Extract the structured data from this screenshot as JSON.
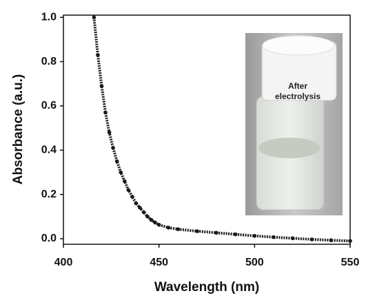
{
  "chart_data": {
    "type": "line",
    "x_label": "Wavelength (nm)",
    "y_label": "Absorbance (a.u.)",
    "annotation": "After electrolysis",
    "x": [
      416,
      418,
      420,
      422,
      424,
      426,
      428,
      430,
      432,
      434,
      436,
      438,
      440,
      442,
      444,
      446,
      448,
      450,
      455,
      460,
      470,
      480,
      490,
      500,
      510,
      520,
      530,
      540,
      550
    ],
    "series": [
      {
        "color": "#1a1a1a",
        "values": [
          1.0,
          0.83,
          0.69,
          0.57,
          0.48,
          0.41,
          0.35,
          0.3,
          0.26,
          0.22,
          0.19,
          0.16,
          0.14,
          0.12,
          0.1,
          0.085,
          0.073,
          0.063,
          0.05,
          0.043,
          0.034,
          0.027,
          0.02,
          0.013,
          0.007,
          0.002,
          -0.003,
          -0.007,
          -0.01
        ]
      }
    ],
    "xlim": [
      400,
      550
    ],
    "xticks": [
      400,
      450,
      500,
      550
    ],
    "ylim": [
      -0.025,
      1.01
    ],
    "yticks": [
      {
        "value": 0,
        "label": "0.0"
      },
      0.2,
      0.4,
      0.6,
      0.8,
      {
        "value": 1,
        "label": "1.0"
      }
    ]
  }
}
